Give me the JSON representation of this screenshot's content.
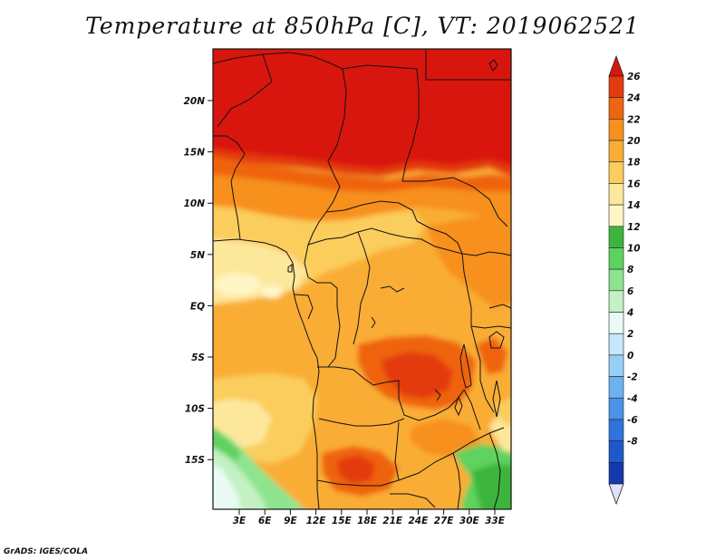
{
  "title": "Temperature at 850hPa [C], VT: 2019062521",
  "footer": "GrADS: IGES/COLA",
  "map": {
    "variable": "Temperature at 850hPa",
    "units": "C",
    "valid_time": "2019062521",
    "lon_labels": [
      "3E",
      "6E",
      "9E",
      "12E",
      "15E",
      "18E",
      "21E",
      "24E",
      "27E",
      "30E",
      "33E"
    ],
    "lat_labels": [
      "20N",
      "15N",
      "10N",
      "5N",
      "EQ",
      "5S",
      "10S",
      "15S"
    ]
  },
  "colorbar": {
    "labels": [
      "26",
      "24",
      "22",
      "20",
      "18",
      "16",
      "14",
      "12",
      "10",
      "8",
      "6",
      "4",
      "2",
      "0",
      "-2",
      "-4",
      "-6",
      "-8"
    ],
    "colors": [
      "#d8180c",
      "#e33b0e",
      "#ef6410",
      "#f7901f",
      "#f9ad36",
      "#fbcd5c",
      "#fde79b",
      "#fff6c6",
      "#3cb53c",
      "#5ed25e",
      "#8ee48e",
      "#c3f1c3",
      "#e9fbf4",
      "#c6e6fb",
      "#98cff7",
      "#6db2f0",
      "#4a93e8",
      "#2e74de",
      "#1e58cb",
      "#1439ad",
      "#0a1c80"
    ],
    "under_color": "#dfe2fa"
  }
}
